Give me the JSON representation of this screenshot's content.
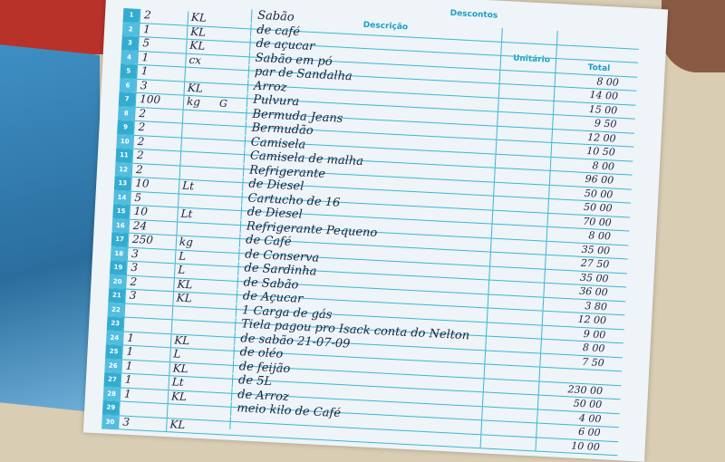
{
  "header": {
    "descricao": "Descrição",
    "descontos": "Descontos",
    "unitario": "Unitário",
    "total": "Total"
  },
  "rows": [
    {
      "n": "1",
      "qty": "2",
      "unit": "KL",
      "ext": "",
      "desc": "Sabão",
      "total": ""
    },
    {
      "n": "2",
      "qty": "1",
      "unit": "KL",
      "ext": "",
      "desc": "de café",
      "total": ""
    },
    {
      "n": "3",
      "qty": "5",
      "unit": "KL",
      "ext": "",
      "desc": "de açucar",
      "total": ""
    },
    {
      "n": "4",
      "qty": "1",
      "unit": "cx",
      "ext": "",
      "desc": "Sabão em pó",
      "total": "8 00"
    },
    {
      "n": "5",
      "qty": "1",
      "unit": "",
      "ext": "",
      "desc": "par de Sandalha",
      "total": "14 00"
    },
    {
      "n": "6",
      "qty": "3",
      "unit": "KL",
      "ext": "",
      "desc": "Arroz",
      "total": "15 00"
    },
    {
      "n": "7",
      "qty": "100",
      "unit": "kg",
      "ext": "G",
      "desc": "Pulvura",
      "total": "9 50"
    },
    {
      "n": "8",
      "qty": "2",
      "unit": "",
      "ext": "",
      "desc": "Bermuda Jeans",
      "total": "12 00"
    },
    {
      "n": "9",
      "qty": "2",
      "unit": "",
      "ext": "",
      "desc": "Bermudão",
      "total": "10 50"
    },
    {
      "n": "10",
      "qty": "2",
      "unit": "",
      "ext": "",
      "desc": "Camisela",
      "total": "8 00"
    },
    {
      "n": "11",
      "qty": "2",
      "unit": "",
      "ext": "",
      "desc": "Camisela de malha",
      "total": "96 00"
    },
    {
      "n": "12",
      "qty": "2",
      "unit": "",
      "ext": "",
      "desc": "Refrigerante",
      "total": "50 00"
    },
    {
      "n": "13",
      "qty": "10",
      "unit": "Lt",
      "ext": "",
      "desc": "de Diesel",
      "total": "50 00"
    },
    {
      "n": "14",
      "qty": "5",
      "unit": "",
      "ext": "",
      "desc": "Cartucho de 16",
      "total": "70 00"
    },
    {
      "n": "15",
      "qty": "10",
      "unit": "Lt",
      "ext": "",
      "desc": "de Diesel",
      "total": "8 00"
    },
    {
      "n": "16",
      "qty": "24",
      "unit": "",
      "ext": "",
      "desc": "Refrigerante Pequeno",
      "total": "35 00"
    },
    {
      "n": "17",
      "qty": "250",
      "unit": "kg",
      "ext": "",
      "desc": "de Café",
      "total": "27 50"
    },
    {
      "n": "18",
      "qty": "3",
      "unit": "L",
      "ext": "",
      "desc": "de Conserva",
      "total": "35 00"
    },
    {
      "n": "19",
      "qty": "3",
      "unit": "L",
      "ext": "",
      "desc": "de Sardinha",
      "total": "36 00"
    },
    {
      "n": "20",
      "qty": "2",
      "unit": "KL",
      "ext": "",
      "desc": "de Sabão",
      "total": "3 80"
    },
    {
      "n": "21",
      "qty": "3",
      "unit": "KL",
      "ext": "",
      "desc": "de Açucar",
      "total": "12 00"
    },
    {
      "n": "22",
      "qty": "",
      "unit": "",
      "ext": "",
      "desc": "1 Carga de gás",
      "total": "9 00"
    },
    {
      "n": "23",
      "qty": "",
      "unit": "",
      "ext": "",
      "desc": "Tiela pagou pro Isack conta do Nelton",
      "total": "8 00"
    },
    {
      "n": "24",
      "qty": "1",
      "unit": "KL",
      "ext": "",
      "desc": "de sabão 21-07-09",
      "total": "7 50"
    },
    {
      "n": "25",
      "qty": "1",
      "unit": "L",
      "ext": "",
      "desc": "de oléo",
      "total": ""
    },
    {
      "n": "26",
      "qty": "1",
      "unit": "KL",
      "ext": "",
      "desc": "de feijão",
      "total": "230 00"
    },
    {
      "n": "27",
      "qty": "1",
      "unit": "Lt",
      "ext": "",
      "desc": "de 5L",
      "total": "50 00"
    },
    {
      "n": "28",
      "qty": "1",
      "unit": "KL",
      "ext": "",
      "desc": "de Arroz",
      "total": "4 00"
    },
    {
      "n": "29",
      "qty": "",
      "unit": "",
      "ext": "",
      "desc": "meio kilo de Café",
      "total": "6 00"
    },
    {
      "n": "30",
      "qty": "3",
      "unit": "KL",
      "ext": "",
      "desc": "",
      "total": "10 00"
    }
  ]
}
